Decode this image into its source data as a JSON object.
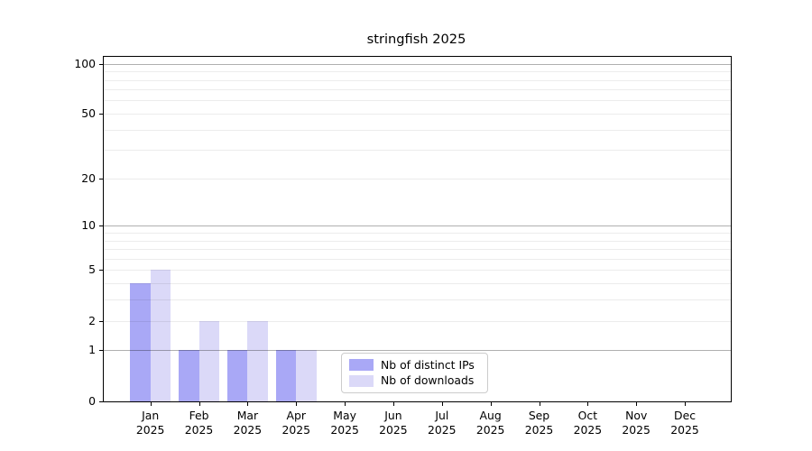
{
  "page": {
    "background": "#ffffff"
  },
  "chart_data": {
    "type": "bar",
    "title": "stringfish 2025",
    "categories": [
      "Jan",
      "Feb",
      "Mar",
      "Apr",
      "May",
      "Jun",
      "Jul",
      "Aug",
      "Sep",
      "Oct",
      "Nov",
      "Dec"
    ],
    "x_year_label": "2025",
    "series": [
      {
        "name": "Nb of distinct IPs",
        "color": "#a9a8f6",
        "values": [
          4,
          1,
          1,
          1,
          0,
          0,
          0,
          0,
          0,
          0,
          0,
          0
        ]
      },
      {
        "name": "Nb of downloads",
        "color": "#dbd9f8",
        "values": [
          5,
          2,
          2,
          1,
          0,
          0,
          0,
          0,
          0,
          0,
          0,
          0
        ]
      }
    ],
    "yscale": "log1p",
    "yticks": [
      0,
      1,
      2,
      5,
      10,
      20,
      50,
      100
    ],
    "yticks_major_grid": [
      1,
      10,
      100
    ],
    "yticks_minor": [
      3,
      4,
      6,
      7,
      8,
      9,
      30,
      40,
      60,
      70,
      80,
      90
    ],
    "ylim": [
      0,
      110
    ],
    "grid": true,
    "legend_position": "lower center",
    "colors": {
      "grid_major": "rgba(0,0,0,0.31)",
      "grid_minor": "rgba(0,0,0,0.075)",
      "axis": "#000000",
      "legend_border": "#cccccc",
      "text": "#000000"
    }
  }
}
